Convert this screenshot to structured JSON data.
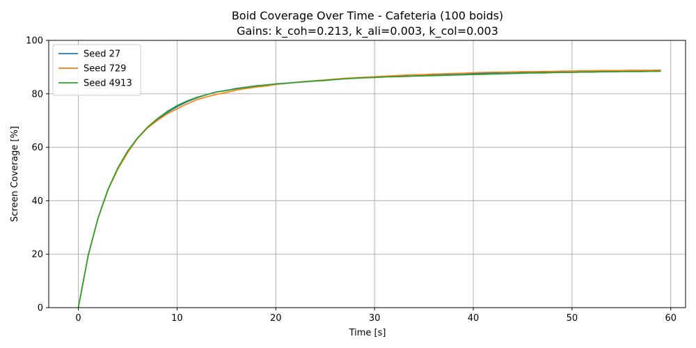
{
  "chart_data": {
    "type": "line",
    "title": "Boid Coverage Over Time - Cafeteria  (100 boids)",
    "subtitle": "Gains: k_coh=0.213, k_ali=0.003, k_col=0.003",
    "xlabel": "Time [s]",
    "ylabel": "Screen Coverage [%]",
    "xlim": [
      -3,
      61.5
    ],
    "ylim": [
      0,
      100
    ],
    "xticks": [
      0,
      10,
      20,
      30,
      40,
      50,
      60
    ],
    "yticks": [
      0,
      20,
      40,
      60,
      80,
      100
    ],
    "grid": true,
    "legend_position": "top-left",
    "x": [
      0,
      1,
      2,
      3,
      4,
      5,
      6,
      7,
      8,
      9,
      10,
      11,
      12,
      13,
      14,
      15,
      16,
      17,
      18,
      19,
      20,
      21,
      22,
      23,
      24,
      25,
      26,
      27,
      28,
      29,
      30,
      31,
      32,
      33,
      34,
      35,
      36,
      37,
      38,
      39,
      40,
      41,
      42,
      43,
      44,
      45,
      46,
      47,
      48,
      49,
      50,
      51,
      52,
      53,
      54,
      55,
      56,
      57,
      58,
      59
    ],
    "series": [
      {
        "name": "Seed 27",
        "color": "#1f77b4",
        "values": [
          0,
          19.5,
          33.5,
          44,
          52,
          58.3,
          63.3,
          67.3,
          70.3,
          73,
          75.2,
          77,
          78.5,
          79.7,
          80.7,
          81.3,
          82,
          82.5,
          83,
          83.3,
          83.7,
          84,
          84.3,
          84.6,
          84.9,
          85.2,
          85.5,
          85.7,
          85.9,
          86.1,
          86.3,
          86.5,
          86.7,
          86.9,
          87,
          87.1,
          87.2,
          87.3,
          87.4,
          87.5,
          87.6,
          87.7,
          87.8,
          87.9,
          88,
          88,
          88.1,
          88.1,
          88.2,
          88.2,
          88.3,
          88.3,
          88.4,
          88.4,
          88.5,
          88.5,
          88.5,
          88.6,
          88.6,
          88.6
        ]
      },
      {
        "name": "Seed 729",
        "color": "#ff7f0e",
        "values": [
          0,
          19.5,
          33.5,
          44,
          51.8,
          58,
          63.3,
          67.2,
          70,
          72.5,
          74.4,
          76.2,
          77.8,
          78.9,
          79.8,
          80.5,
          81.4,
          82,
          82.5,
          82.9,
          83.5,
          83.9,
          84.3,
          84.6,
          84.9,
          85.2,
          85.5,
          85.8,
          86,
          86.2,
          86.4,
          86.6,
          86.8,
          87,
          87.1,
          87.2,
          87.4,
          87.5,
          87.6,
          87.7,
          87.9,
          88,
          88.1,
          88.1,
          88.2,
          88.3,
          88.3,
          88.4,
          88.4,
          88.5,
          88.5,
          88.6,
          88.6,
          88.7,
          88.7,
          88.7,
          88.8,
          88.8,
          88.8,
          88.9
        ]
      },
      {
        "name": "Seed 4913",
        "color": "#2ca02c",
        "values": [
          0,
          19.7,
          33.6,
          44.2,
          52.3,
          58.6,
          63.5,
          67.5,
          70.7,
          73.4,
          75.6,
          77.3,
          78.7,
          79.7,
          80.7,
          81.2,
          81.9,
          82.4,
          82.9,
          83.3,
          83.7,
          83.9,
          84.2,
          84.5,
          84.8,
          85,
          85.3,
          85.6,
          85.8,
          86,
          86.1,
          86.3,
          86.4,
          86.5,
          86.6,
          86.7,
          86.8,
          86.9,
          87,
          87.1,
          87.2,
          87.3,
          87.4,
          87.5,
          87.6,
          87.7,
          87.8,
          87.8,
          87.9,
          88,
          88,
          88.1,
          88.1,
          88.2,
          88.2,
          88.3,
          88.3,
          88.3,
          88.4,
          88.4
        ]
      }
    ]
  }
}
